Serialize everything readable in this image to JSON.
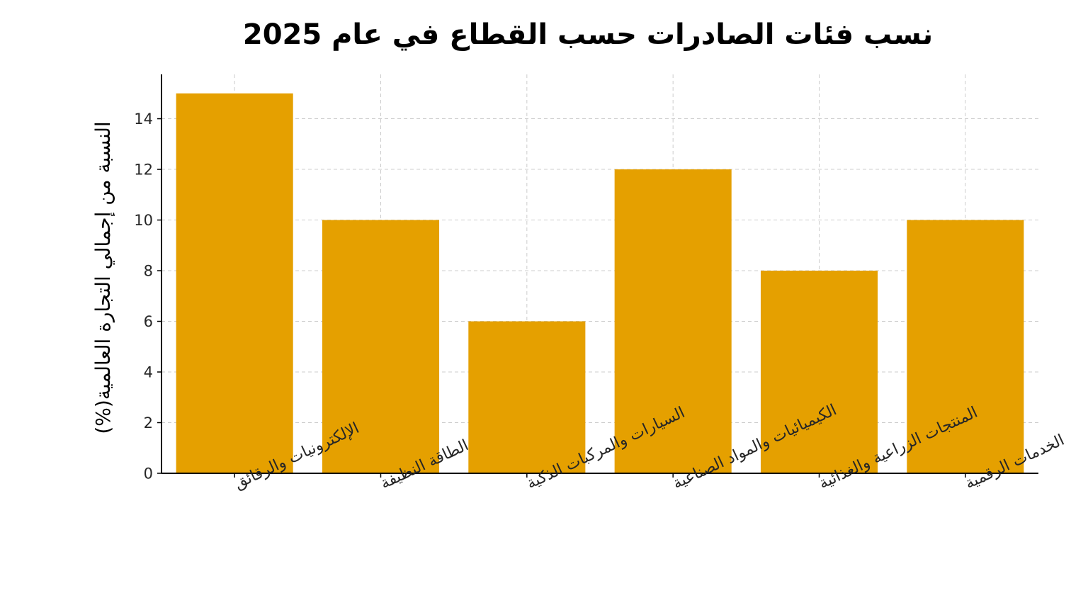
{
  "chart_data": {
    "type": "bar",
    "title": "نسب فئات الصادرات حسب القطاع في عام 2025",
    "xlabel": "",
    "ylabel": "النسبة من إجمالي التجارة العالمية(%)",
    "categories": [
      "الإلكترونيات والرقائق",
      "الطاقة النظيفة",
      "السيارات والمركبات الذكية",
      "الكيميائيات والمواد الصناعية",
      "المنتجات الزراعية والغذائية",
      "الخدمات الرقمية"
    ],
    "values": [
      15,
      10,
      6,
      12,
      8,
      10
    ],
    "ylim": [
      0,
      15.75
    ],
    "yticks": [
      "0",
      "2",
      "4",
      "6",
      "8",
      "10",
      "12",
      "14"
    ],
    "grid": true,
    "legend": "none",
    "colors": {
      "bar": "#E5A000",
      "axis": "#000000",
      "grid": "#cccccc"
    }
  }
}
